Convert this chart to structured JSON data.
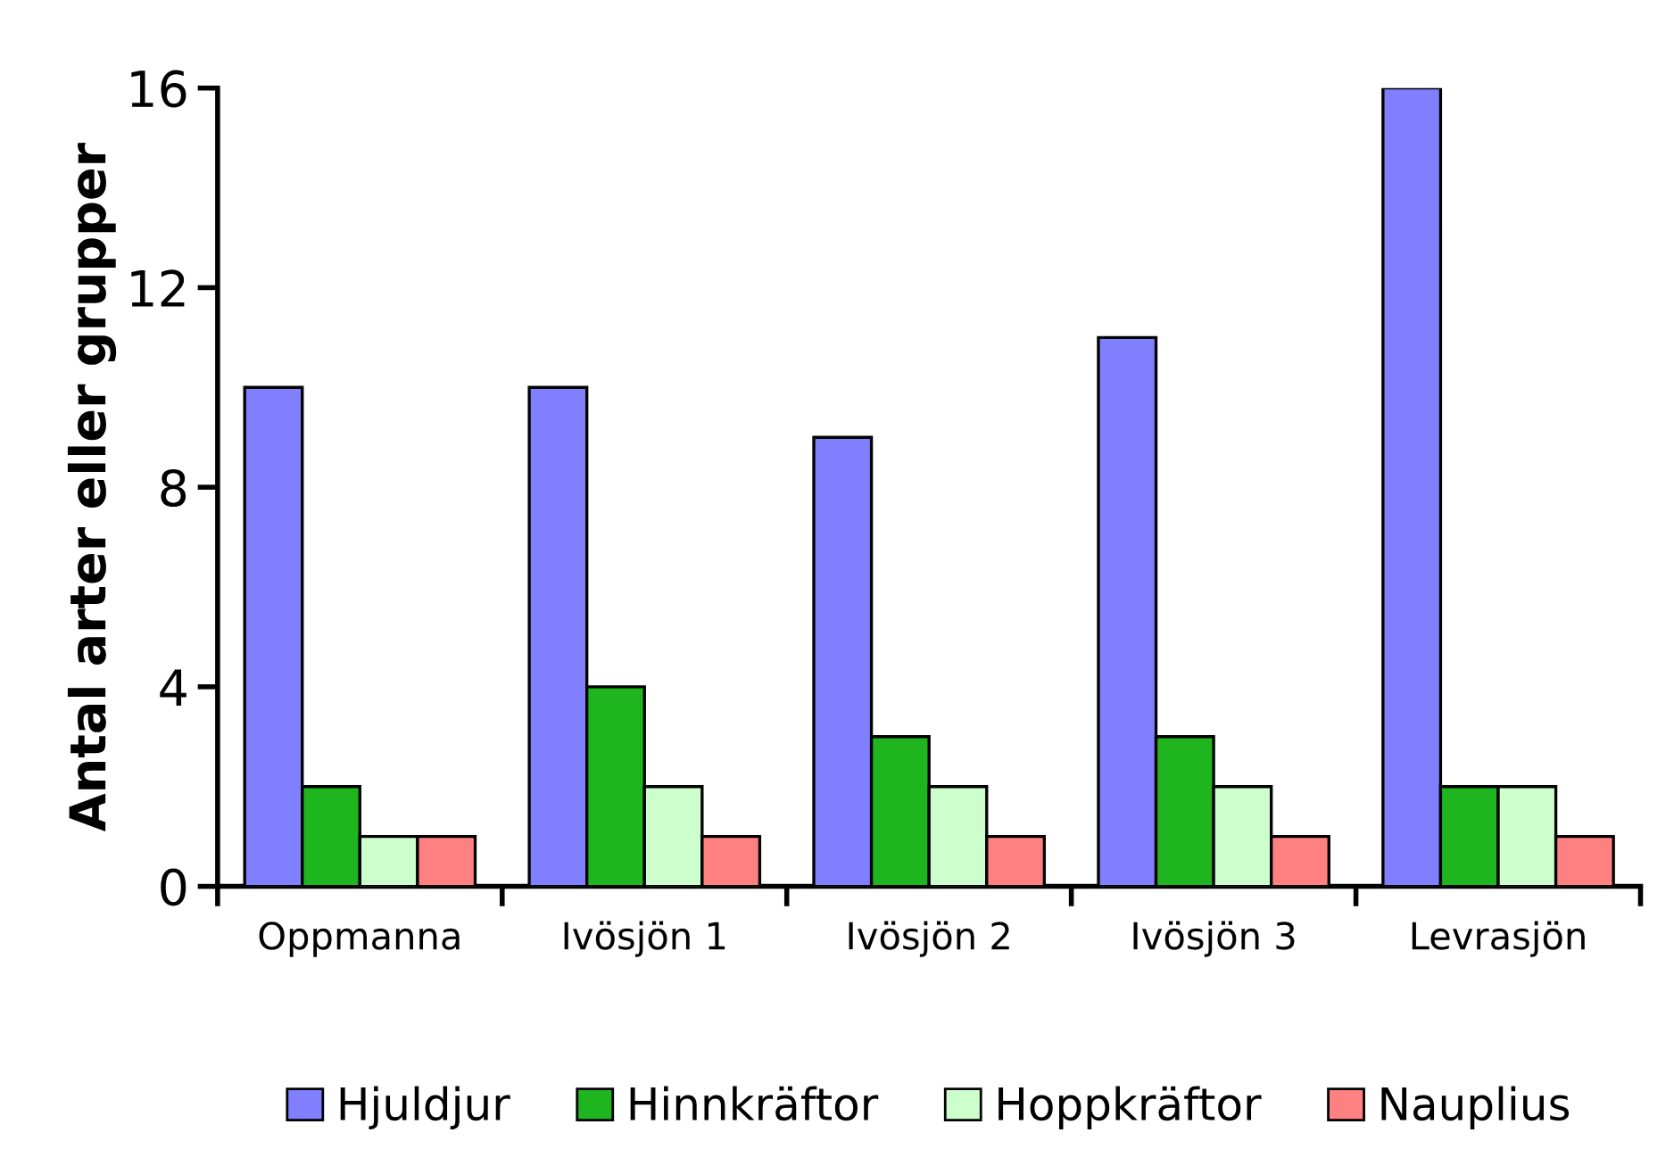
{
  "chart_data": {
    "type": "bar",
    "ylabel": "Antal arter eller grupper",
    "categories": [
      "Oppmanna",
      "Ivösjön 1",
      "Ivösjön 2",
      "Ivösjön 3",
      "Levrasjön"
    ],
    "series": [
      {
        "name": "Hjuldjur",
        "color": "#8080ff",
        "values": [
          10,
          10,
          9,
          11,
          16
        ]
      },
      {
        "name": "Hinnkräftor",
        "color": "#1fb51f",
        "values": [
          2,
          4,
          3,
          3,
          2
        ]
      },
      {
        "name": "Hoppkräftor",
        "color": "#ccffcc",
        "values": [
          1,
          2,
          2,
          2,
          2
        ]
      },
      {
        "name": "Nauplius",
        "color": "#ff8080",
        "values": [
          1,
          1,
          1,
          1,
          1
        ]
      }
    ],
    "ylim": [
      0,
      16
    ],
    "yticks": [
      0,
      4,
      8,
      12,
      16
    ],
    "grid": false,
    "legend": "bottom"
  }
}
